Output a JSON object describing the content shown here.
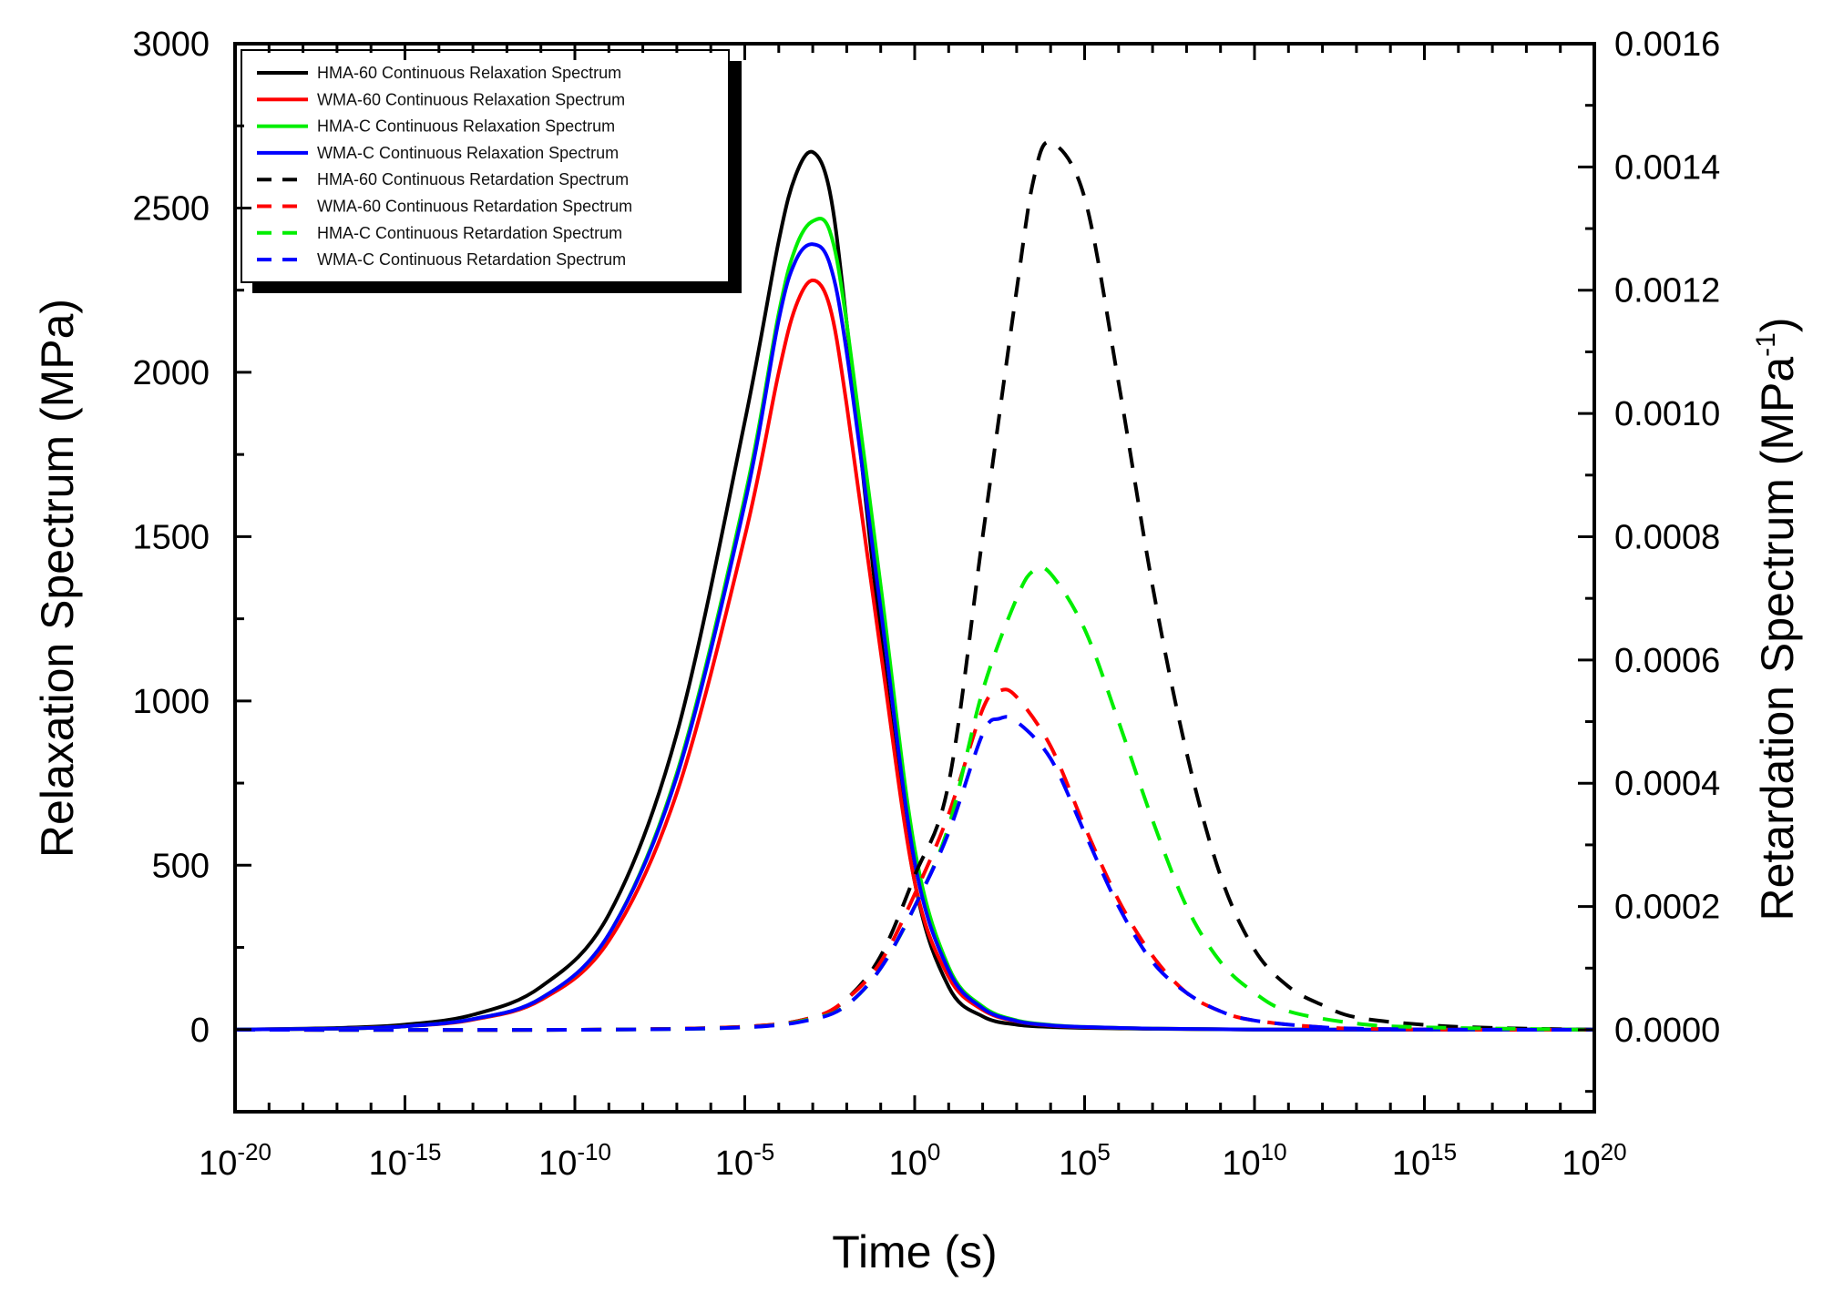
{
  "chart_data": {
    "type": "line",
    "xlabel": "Time (s)",
    "ylabel_left": "Relaxation Spectrum (MPa)",
    "ylabel_right": {
      "base": "Retardation Spectrum (MPa",
      "sup": "-1",
      "close": ")"
    },
    "x_scale": "log10",
    "xlim_exp": [
      -20,
      20
    ],
    "x_ticks": [
      {
        "base": "10",
        "exp": "-20"
      },
      {
        "base": "10",
        "exp": "-15"
      },
      {
        "base": "10",
        "exp": "-10"
      },
      {
        "base": "10",
        "exp": "-5"
      },
      {
        "base": "10",
        "exp": "0"
      },
      {
        "base": "10",
        "exp": "5"
      },
      {
        "base": "10",
        "exp": "10"
      },
      {
        "base": "10",
        "exp": "15"
      },
      {
        "base": "10",
        "exp": "20"
      }
    ],
    "ylim_left": [
      -250,
      3000
    ],
    "y_ticks_left": [
      "0",
      "500",
      "1000",
      "1500",
      "2000",
      "2500",
      "3000"
    ],
    "ylim_right": [
      -0.000133,
      0.0016
    ],
    "y_ticks_right": [
      "0.0000",
      "0.0002",
      "0.0004",
      "0.0006",
      "0.0008",
      "0.0010",
      "0.0012",
      "0.0014",
      "0.0016"
    ],
    "series": [
      {
        "name": "HMA-60 Continuous Relaxation Spectrum",
        "color": "#000000",
        "dash": "solid",
        "axis": "left",
        "x_log10": [
          -20,
          -17,
          -15,
          -13,
          -11,
          -9,
          -7,
          -5,
          -4,
          -3.5,
          -3,
          -2.5,
          -2,
          -1,
          0,
          1,
          2,
          3,
          4,
          5,
          7,
          10,
          15,
          20
        ],
        "y": [
          0,
          5,
          15,
          45,
          130,
          350,
          900,
          1850,
          2400,
          2600,
          2670,
          2550,
          2150,
          1200,
          450,
          130,
          40,
          15,
          8,
          5,
          2,
          0,
          0,
          0
        ]
      },
      {
        "name": "WMA-60 Continuous Relaxation Spectrum",
        "color": "#ff0000",
        "dash": "solid",
        "axis": "left",
        "x_log10": [
          -20,
          -17,
          -15,
          -13,
          -11,
          -9,
          -7,
          -5,
          -4,
          -3.5,
          -3,
          -2.5,
          -2,
          -1,
          0,
          1,
          2,
          3,
          4,
          5,
          7,
          10,
          15,
          20
        ],
        "y": [
          0,
          3,
          10,
          30,
          90,
          270,
          720,
          1500,
          2000,
          2200,
          2280,
          2200,
          1900,
          1150,
          450,
          160,
          60,
          25,
          12,
          7,
          3,
          0,
          0,
          0
        ]
      },
      {
        "name": "HMA-C Continuous Relaxation Spectrum",
        "color": "#00ee00",
        "dash": "solid",
        "axis": "left",
        "x_log10": [
          -20,
          -17,
          -15,
          -13,
          -11,
          -9,
          -7,
          -5,
          -4,
          -3.5,
          -3,
          -2.5,
          -2,
          -1,
          0,
          1,
          2,
          3,
          4,
          5,
          7,
          10,
          15,
          20
        ],
        "y": [
          0,
          3,
          10,
          32,
          95,
          290,
          780,
          1620,
          2180,
          2380,
          2460,
          2430,
          2150,
          1350,
          550,
          190,
          70,
          28,
          14,
          8,
          3,
          0,
          0,
          0
        ]
      },
      {
        "name": "WMA-C Continuous Relaxation Spectrum",
        "color": "#0000ff",
        "dash": "solid",
        "axis": "left",
        "x_log10": [
          -20,
          -17,
          -15,
          -13,
          -11,
          -9,
          -7,
          -5,
          -4,
          -3.5,
          -3,
          -2.5,
          -2,
          -1,
          0,
          1,
          2,
          3,
          4,
          5,
          7,
          10,
          15,
          20
        ],
        "y": [
          0,
          3,
          10,
          32,
          95,
          290,
          770,
          1600,
          2160,
          2340,
          2390,
          2330,
          2060,
          1280,
          510,
          180,
          65,
          26,
          13,
          8,
          3,
          0,
          0,
          0
        ]
      },
      {
        "name": "HMA-60 Continuous  Retardation Spectrum",
        "color": "#000000",
        "dash": "dashed",
        "axis": "right",
        "x_log10": [
          -20,
          -10,
          -5,
          -3,
          -2,
          -1,
          0,
          1,
          2,
          3,
          3.5,
          4,
          5,
          6,
          7,
          8,
          9,
          10,
          11,
          12,
          13,
          15,
          17,
          20
        ],
        "y": [
          0,
          0,
          5e-06,
          2e-05,
          5e-05,
          0.00012,
          0.00025,
          0.0004,
          0.0008,
          0.0012,
          0.00138,
          0.00144,
          0.00135,
          0.00105,
          0.00072,
          0.00045,
          0.00025,
          0.00013,
          7e-05,
          4e-05,
          2e-05,
          8e-06,
          3e-06,
          0
        ]
      },
      {
        "name": "WMA-60 Continuous  Retardation Spectrum",
        "color": "#ff0000",
        "dash": "dashed",
        "axis": "right",
        "x_log10": [
          -20,
          -10,
          -5,
          -3,
          -2,
          -1,
          0,
          1,
          2,
          2.5,
          3,
          4,
          5,
          6,
          7,
          8,
          9,
          10,
          12,
          14,
          17,
          20
        ],
        "y": [
          0,
          0,
          5e-06,
          2e-05,
          5e-05,
          0.00011,
          0.00022,
          0.00035,
          0.00052,
          0.00055,
          0.00054,
          0.00046,
          0.00033,
          0.00021,
          0.00012,
          6e-05,
          3e-05,
          1.5e-05,
          4e-06,
          1e-06,
          0,
          0
        ]
      },
      {
        "name": "HMA-C Continuous  Retardation Spectrum",
        "color": "#00ee00",
        "dash": "dashed",
        "axis": "right",
        "x_log10": [
          -20,
          -10,
          -5,
          -3,
          -2,
          -1,
          0,
          1,
          2,
          3,
          3.5,
          4,
          5,
          6,
          7,
          8,
          9,
          10,
          11,
          13,
          15,
          20
        ],
        "y": [
          0,
          0,
          4e-06,
          1.8e-05,
          4e-05,
          0.0001,
          0.0002,
          0.00033,
          0.00055,
          0.0007,
          0.000745,
          0.00074,
          0.00065,
          0.0005,
          0.00034,
          0.0002,
          0.00011,
          6e-05,
          3e-05,
          1e-05,
          4e-06,
          0
        ]
      },
      {
        "name": "WMA-C Continuous  Retardation Spectrum",
        "color": "#0000ff",
        "dash": "dashed",
        "axis": "right",
        "x_log10": [
          -20,
          -10,
          -5,
          -3,
          -2,
          -1,
          0,
          1,
          2,
          2.5,
          3,
          4,
          5,
          6,
          7,
          8,
          9,
          10,
          12,
          14,
          17,
          20
        ],
        "y": [
          0,
          0,
          4e-06,
          1.7e-05,
          4e-05,
          0.0001,
          0.0002,
          0.00032,
          0.00048,
          0.000505,
          0.0005,
          0.00044,
          0.00032,
          0.0002,
          0.00011,
          6e-05,
          3e-05,
          1.5e-05,
          4e-06,
          1e-06,
          0,
          0
        ]
      }
    ],
    "legend_position": "top-left",
    "grid": false
  }
}
